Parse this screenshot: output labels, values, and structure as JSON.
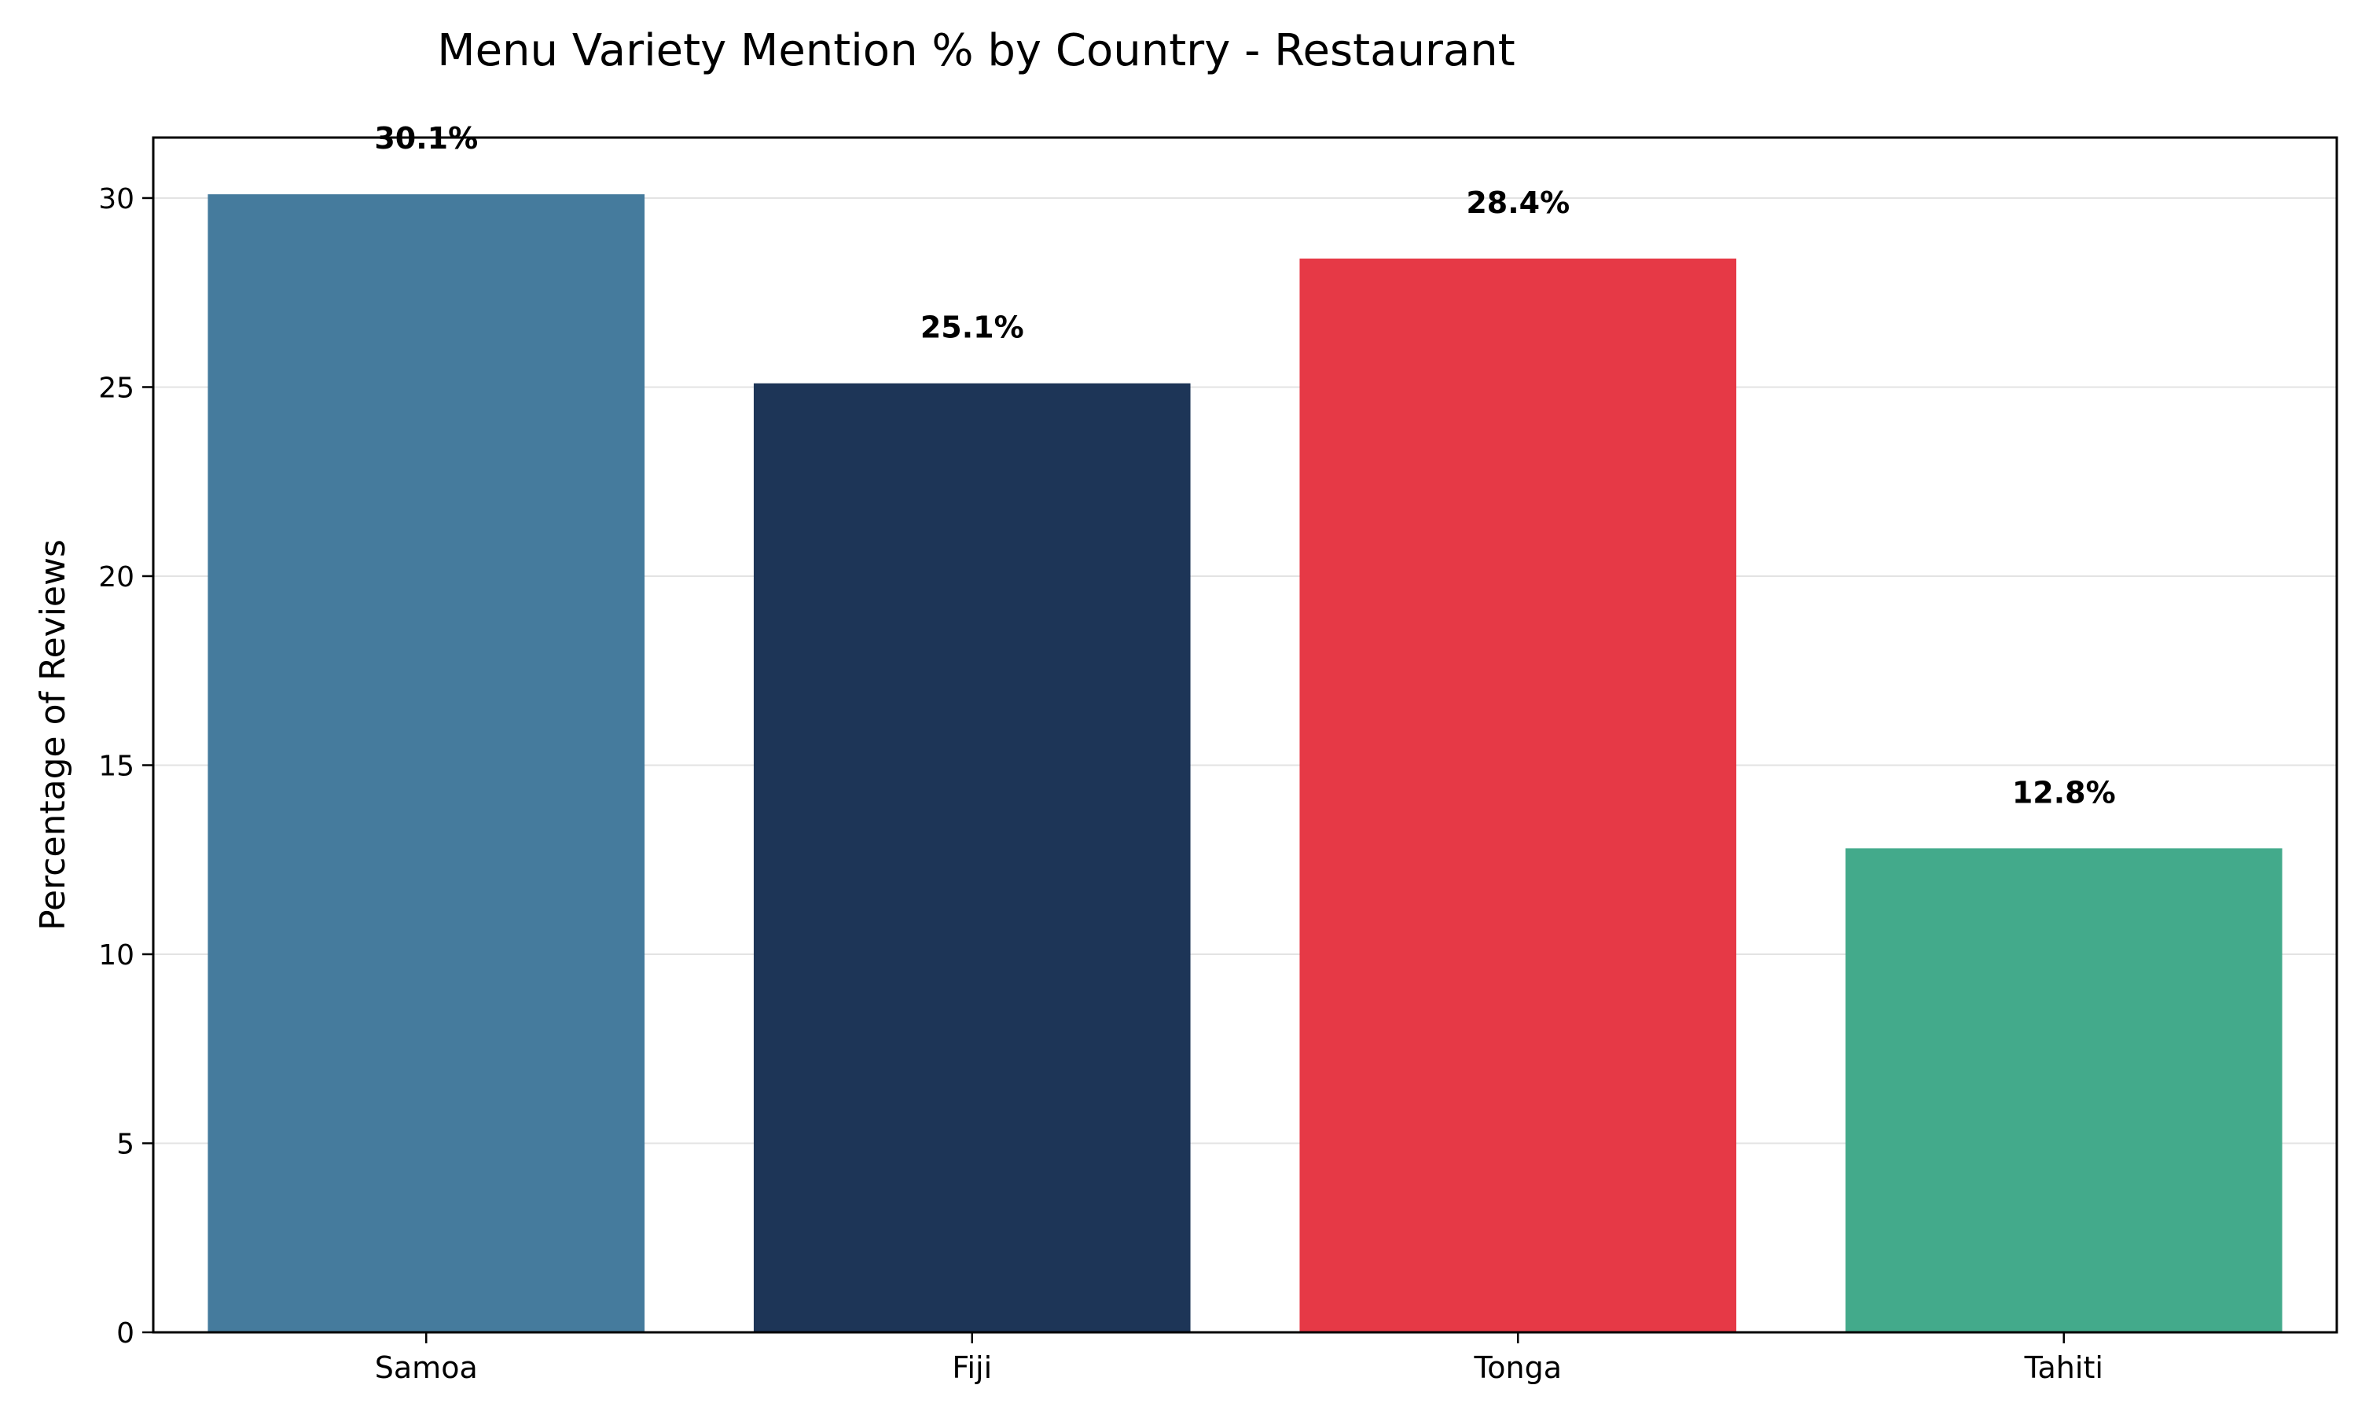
{
  "chart_data": {
    "type": "bar",
    "title": "Menu Variety Mention % by Country - Restaurant",
    "xlabel": "",
    "ylabel": "Percentage of Reviews",
    "categories": [
      "Samoa",
      "Fiji",
      "Tonga",
      "Tahiti"
    ],
    "values": [
      30.1,
      25.1,
      28.4,
      12.8
    ],
    "value_labels": [
      "30.1%",
      "25.1%",
      "28.4%",
      "12.8%"
    ],
    "colors": [
      "#457b9d",
      "#1d3557",
      "#e63946",
      "#43aa8b"
    ],
    "ylim": [
      0,
      31.6
    ],
    "yticks": [
      0,
      5,
      10,
      15,
      20,
      25,
      30
    ],
    "grid": "horizontal",
    "legend": "none"
  }
}
